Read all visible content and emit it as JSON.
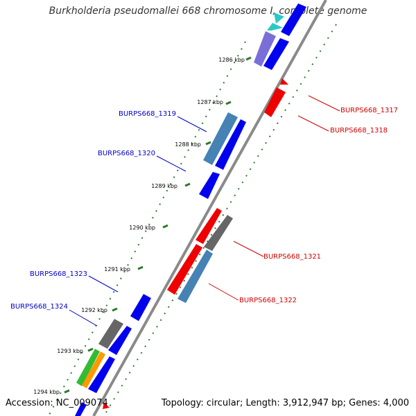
{
  "title": "Burkholderia pseudomallei 668 chromosome I, complete genome",
  "footer": {
    "accession": "Accession: NC_009074",
    "summary": "Topology: circular; Length: 3,912,947 bp; Genes: 4,000"
  },
  "ticks": [
    "1286 kbp",
    "1287 kbp",
    "1288 kbp",
    "1289 kbp",
    "1290 kbp",
    "1291 kbp",
    "1292 kbp",
    "1293 kbp",
    "1294 kbp"
  ],
  "gene_labels": {
    "left": [
      "BURPS668_1319",
      "BURPS668_1320",
      "BURPS668_1323",
      "BURPS668_1324"
    ],
    "right": [
      "BURPS668_1317",
      "BURPS668_1318",
      "BURPS668_1321",
      "BURPS668_1322"
    ]
  },
  "colors": {
    "forward_label": "#0000c8",
    "reverse_label": "#d00000",
    "blue": "#0000ee",
    "red": "#ee0000",
    "steel": "#4682b4",
    "gray": "#666666",
    "cyan": "#2cc8c8",
    "lavender": "#7a6fd8",
    "green": "#33bb33",
    "orange": "#ff9900",
    "tick": "#2a7a2a"
  }
}
